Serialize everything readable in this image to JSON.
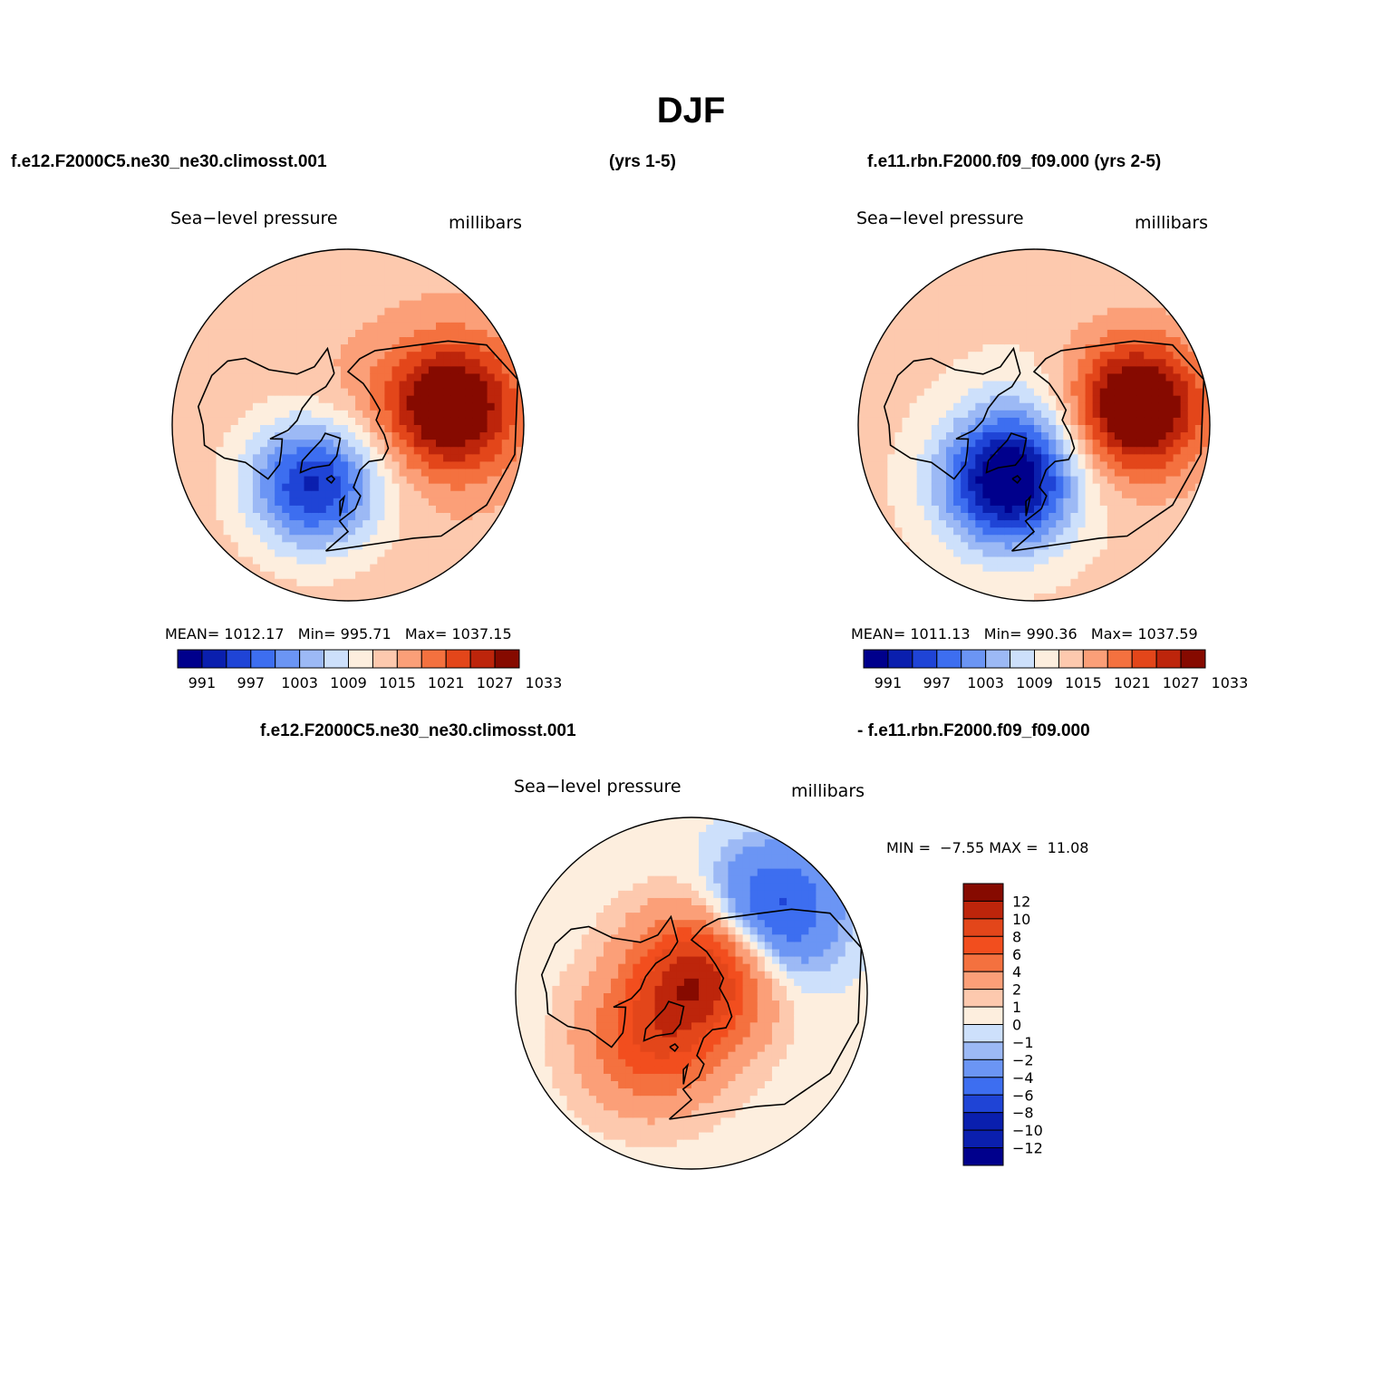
{
  "figure": {
    "title": "DJF",
    "header_left": "f.e12.F2000C5.ne30_ne30.climosst.001",
    "header_mid": "(yrs 1-5)",
    "header_right": "f.e11.rbn.F2000.f09_f09.000 (yrs 2-5)",
    "diff_header_left": "f.e12.F2000C5.ne30_ne30.climosst.001",
    "diff_header_right": "- f.e11.rbn.F2000.f09_f09.000"
  },
  "colors": {
    "abs_scale": [
      "#00008c",
      "#0a1fae",
      "#1f44d6",
      "#3d6ef0",
      "#6b95f4",
      "#9cb9f5",
      "#cde0fb",
      "#fdeede",
      "#fdc9ae",
      "#fb9f78",
      "#f4713f",
      "#e3461a",
      "#bd250b",
      "#860a00"
    ],
    "diff_scale": [
      "#860a00",
      "#bd250b",
      "#e3461a",
      "#f24e1e",
      "#f4713f",
      "#fb9f78",
      "#fdc9ae",
      "#fdeede",
      "#cde0fb",
      "#9cb9f5",
      "#6b95f4",
      "#3d6ef0",
      "#1f44d6",
      "#0a1fae",
      "#0a1fae",
      "#00008c"
    ]
  },
  "chart_data": [
    {
      "type": "heatmap",
      "panel": "model-1",
      "title": "Sea−level pressure",
      "units": "millibars",
      "projection": "north-polar-stereographic",
      "stats": {
        "mean_label": "MEAN=",
        "mean": "1012.17",
        "min_label": "Min=",
        "min": "995.71",
        "max_label": "Max=",
        "max": "1037.15"
      },
      "colorbar_ticks": [
        "991",
        "997",
        "1003",
        "1009",
        "1015",
        "1021",
        "1027",
        "1033"
      ],
      "field": {
        "background": 1017,
        "features": [
          {
            "name": "icelandic-low",
            "value": 996,
            "lon": -30,
            "lat": 60
          },
          {
            "name": "aleutian-high-region",
            "value": 1036,
            "lon": 100,
            "lat": 45
          },
          {
            "name": "arctic-ridge",
            "value": 1019,
            "lon": -150,
            "lat": 85
          }
        ]
      }
    },
    {
      "type": "heatmap",
      "panel": "model-2",
      "title": "Sea−level pressure",
      "units": "millibars",
      "projection": "north-polar-stereographic",
      "stats": {
        "mean_label": "MEAN=",
        "mean": "1011.13",
        "min_label": "Min=",
        "min": "990.36",
        "max_label": "Max=",
        "max": "1037.59"
      },
      "colorbar_ticks": [
        "991",
        "997",
        "1003",
        "1009",
        "1015",
        "1021",
        "1027",
        "1033"
      ],
      "field": {
        "background": 1016,
        "features": [
          {
            "name": "icelandic-low",
            "value": 990,
            "lon": -25,
            "lat": 62
          },
          {
            "name": "aleutian-high-region",
            "value": 1037,
            "lon": 100,
            "lat": 45
          },
          {
            "name": "arctic-ridge",
            "value": 1013,
            "lon": -150,
            "lat": 85
          }
        ]
      }
    },
    {
      "type": "heatmap",
      "panel": "difference",
      "title": "Sea−level pressure",
      "units": "millibars",
      "projection": "north-polar-stereographic",
      "stats": {
        "min_label": "MIN =",
        "min": "−7.55",
        "max_label": "MAX =",
        "max": "11.08"
      },
      "colorbar_ticks": [
        "12",
        "10",
        "8",
        "6",
        "4",
        "2",
        "1",
        "0",
        "−1",
        "−2",
        "−4",
        "−6",
        "−8",
        "−10",
        "−12"
      ],
      "field": {
        "background": 0.5,
        "features": [
          {
            "name": "arctic-positive",
            "value": 11,
            "lon": 150,
            "lat": 80
          },
          {
            "name": "atlantic-positive",
            "value": 7,
            "lon": -40,
            "lat": 62
          },
          {
            "name": "pacific-negative",
            "value": -7,
            "lon": 135,
            "lat": 40
          }
        ]
      }
    }
  ]
}
